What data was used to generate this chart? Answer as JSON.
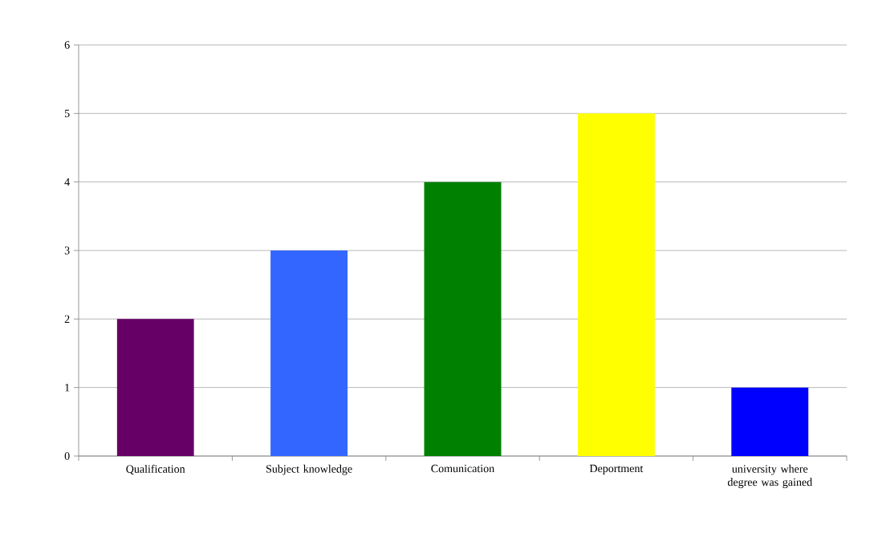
{
  "chart_data": {
    "type": "bar",
    "categories": [
      "Qualification",
      "Subject knowledge",
      "Comunication",
      "Deportment",
      "university where degree was gained"
    ],
    "values": [
      2,
      3,
      4,
      5,
      1
    ],
    "colors": [
      "#660066",
      "#3366ff",
      "#008000",
      "#ffff00",
      "#0000ff"
    ],
    "ylim": [
      0,
      6
    ],
    "yticks": [
      0,
      1,
      2,
      3,
      4,
      5,
      6
    ],
    "grid": "y"
  }
}
